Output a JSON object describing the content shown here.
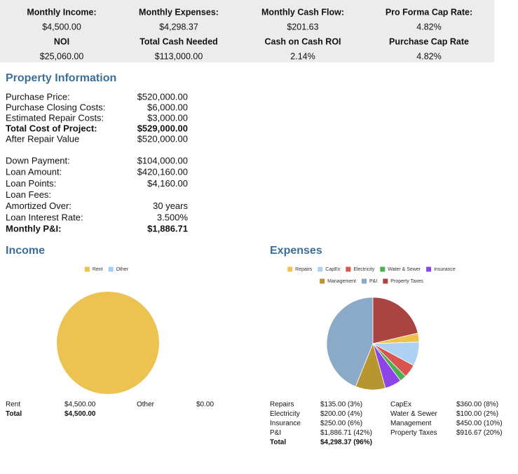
{
  "summary": {
    "rows": [
      {
        "labels": [
          "Monthly Income:",
          "Monthly Expenses:",
          "Monthly Cash Flow:",
          "Pro Forma Cap Rate:"
        ],
        "values": [
          "$4,500.00",
          "$4,298.37",
          "$201.63",
          "4.82%"
        ]
      },
      {
        "labels": [
          "NOI",
          "Total Cash Needed",
          "Cash on Cash ROI",
          "Purchase Cap Rate"
        ],
        "values": [
          "$25,060.00",
          "$113,000.00",
          "2.14%",
          "4.82%"
        ]
      }
    ]
  },
  "property": {
    "title": "Property Information",
    "groups": [
      [
        {
          "label": "Purchase Price:",
          "value": "$520,000.00"
        },
        {
          "label": "Purchase Closing Costs:",
          "value": "$6,000.00"
        },
        {
          "label": "Estimated Repair Costs:",
          "value": "$3,000.00"
        },
        {
          "label": "Total Cost of Project:",
          "value": "$529,000.00",
          "bold": true
        },
        {
          "label": "After Repair Value",
          "value": "$520,000.00"
        }
      ],
      [
        {
          "label": "Down Payment:",
          "value": "$104,000.00"
        },
        {
          "label": "Loan Amount:",
          "value": "$420,160.00"
        },
        {
          "label": "Loan Points:",
          "value": "$4,160.00"
        },
        {
          "label": "Loan Fees:"
        },
        {
          "label": "Amortized Over:",
          "value": "30 years"
        },
        {
          "label": "Loan Interest Rate:",
          "value": "3.500%"
        },
        {
          "label": "Monthly P&I:",
          "value": "$1,886.71",
          "bold": true
        }
      ]
    ]
  },
  "income": {
    "title": "Income",
    "chart": {
      "type": "pie",
      "series": [
        {
          "name": "Rent",
          "color": "#ecc251",
          "value": 4500,
          "value_label": "$4,500.00"
        },
        {
          "name": "Other",
          "color": "#a9cdf0",
          "value": 0,
          "value_label": "$0.00"
        }
      ]
    },
    "total_label": "Total",
    "total": "$4,500.00"
  },
  "expenses": {
    "title": "Expenses",
    "chart": {
      "type": "pie",
      "series": [
        {
          "name": "Repairs",
          "color": "#f0c24c",
          "value": 135,
          "value_label": "$135.00 (3%)"
        },
        {
          "name": "CapEx",
          "color": "#aed1f2",
          "value": 360,
          "value_label": "$360.00 (8%)"
        },
        {
          "name": "Electricity",
          "color": "#d9534f",
          "value": 200,
          "value_label": "$200.00 (4%)"
        },
        {
          "name": "Water & Sewer",
          "color": "#4caf50",
          "value": 100,
          "value_label": "$100.00 (2%)"
        },
        {
          "name": "Insurance",
          "color": "#8e44e6",
          "value": 250,
          "value_label": "$250.00 (6%)"
        },
        {
          "name": "Management",
          "color": "#b8962f",
          "value": 450,
          "value_label": "$450.00 (10%)"
        },
        {
          "name": "P&I",
          "color": "#8aaac8",
          "value": 1886.71,
          "value_label": "$1,886.71 (42%)"
        },
        {
          "name": "Property Taxes",
          "color": "#a94442",
          "value": 916.67,
          "value_label": "$916.67 (20%)"
        }
      ]
    },
    "total_label": "Total",
    "total": "$4,298.37 (96%)"
  }
}
